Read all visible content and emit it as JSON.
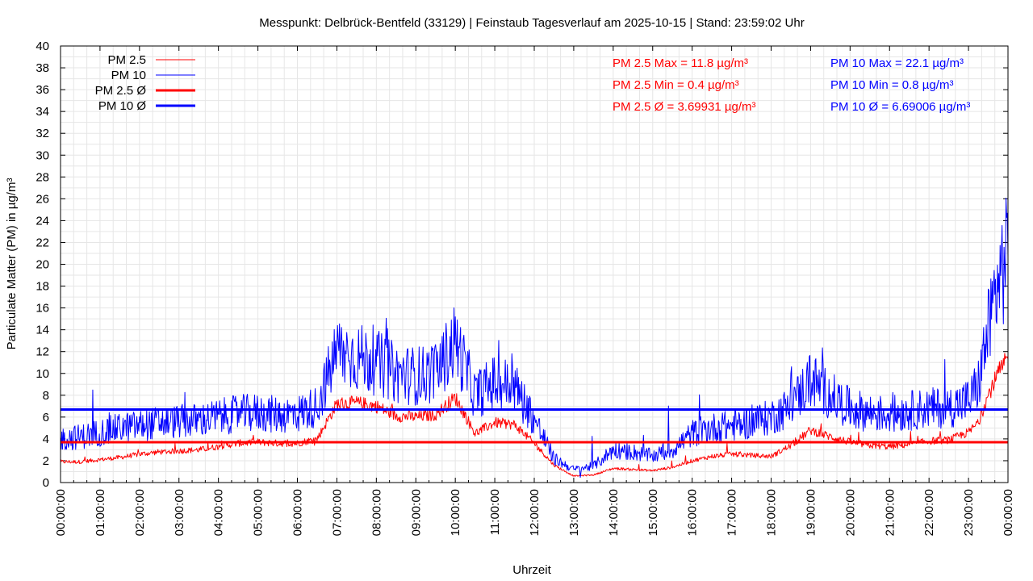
{
  "chart_data": {
    "type": "line",
    "title": "Messpunkt: Delbrück-Bentfeld (33129) | Feinstaub Tagesverlauf am 2025-10-15 | Stand: 23:59:02 Uhr",
    "xlabel": "Uhrzeit",
    "ylabel": "Particulate Matter (PM) in µg/m³",
    "ylim": [
      0,
      40
    ],
    "xlim": [
      "00:00:00",
      "24:00:00"
    ],
    "grid": true,
    "legend_position": "top-left",
    "x_ticks": [
      "00:00:00",
      "01:00:00",
      "02:00:00",
      "03:00:00",
      "04:00:00",
      "05:00:00",
      "06:00:00",
      "07:00:00",
      "08:00:00",
      "09:00:00",
      "10:00:00",
      "11:00:00",
      "12:00:00",
      "13:00:00",
      "14:00:00",
      "15:00:00",
      "16:00:00",
      "17:00:00",
      "18:00:00",
      "19:00:00",
      "20:00:00",
      "21:00:00",
      "22:00:00",
      "23:00:00",
      "00:00:00"
    ],
    "y_ticks": [
      0,
      2,
      4,
      6,
      8,
      10,
      12,
      14,
      16,
      18,
      20,
      22,
      24,
      26,
      28,
      30,
      32,
      34,
      36,
      38,
      40
    ],
    "x_times": [
      "00:00",
      "00:30",
      "01:00",
      "01:30",
      "02:00",
      "02:30",
      "03:00",
      "03:30",
      "04:00",
      "04:30",
      "05:00",
      "05:30",
      "06:00",
      "06:30",
      "07:00",
      "07:30",
      "08:00",
      "08:30",
      "09:00",
      "09:30",
      "10:00",
      "10:30",
      "11:00",
      "11:30",
      "12:00",
      "12:30",
      "13:00",
      "13:30",
      "14:00",
      "14:30",
      "15:00",
      "15:30",
      "16:00",
      "16:30",
      "17:00",
      "17:30",
      "18:00",
      "18:30",
      "19:00",
      "19:30",
      "20:00",
      "20:30",
      "21:00",
      "21:30",
      "22:00",
      "22:30",
      "23:00",
      "23:15",
      "23:30",
      "23:45",
      "24:00"
    ],
    "series": [
      {
        "name": "PM 2.5",
        "color": "#ff0000",
        "values": [
          1.9,
          1.9,
          2.1,
          2.3,
          2.6,
          2.8,
          2.9,
          3.0,
          3.3,
          3.6,
          3.7,
          3.6,
          3.6,
          4.0,
          7.2,
          7.3,
          7.0,
          6.1,
          6.0,
          6.2,
          7.8,
          4.5,
          5.5,
          5.3,
          3.6,
          1.6,
          0.6,
          0.7,
          1.3,
          1.2,
          1.1,
          1.4,
          2.0,
          2.4,
          2.6,
          2.5,
          2.4,
          3.4,
          4.8,
          4.2,
          3.7,
          3.4,
          3.3,
          3.5,
          3.8,
          3.9,
          4.6,
          5.5,
          8.0,
          10.0,
          11.3
        ]
      },
      {
        "name": "PM 10",
        "color": "#0000ff",
        "values": [
          4.0,
          4.2,
          4.6,
          5.0,
          5.2,
          5.5,
          5.6,
          5.7,
          6.0,
          6.3,
          6.4,
          6.2,
          6.3,
          7.0,
          12.0,
          11.5,
          11.0,
          10.0,
          9.8,
          10.0,
          13.0,
          8.0,
          9.2,
          8.8,
          5.8,
          2.2,
          1.2,
          1.5,
          3.0,
          2.8,
          2.4,
          3.0,
          4.5,
          5.0,
          5.2,
          5.5,
          6.0,
          7.0,
          9.5,
          8.0,
          6.8,
          6.4,
          6.2,
          6.6,
          6.8,
          6.9,
          7.5,
          9.0,
          14.0,
          18.5,
          21.0
        ]
      }
    ],
    "averages": [
      {
        "name": "PM 2.5 Ø",
        "value": 3.69931,
        "color": "#ff0000"
      },
      {
        "name": "PM 10 Ø",
        "value": 6.69006,
        "color": "#0000ff"
      }
    ],
    "annotations": {
      "pm25": [
        "PM 2.5 Max = 11.8 µg/m³",
        "PM 2.5 Min = 0.4 µg/m³",
        "PM 2.5 Ø = 3.69931 µg/m³"
      ],
      "pm10": [
        "PM 10 Max = 22.1 µg/m³",
        "PM 10 Min = 0.8 µg/m³",
        "PM 10 Ø = 6.69006 µg/m³"
      ]
    },
    "legend": [
      "PM 2.5",
      "PM 10",
      "PM 2.5 Ø",
      "PM 10 Ø"
    ]
  }
}
